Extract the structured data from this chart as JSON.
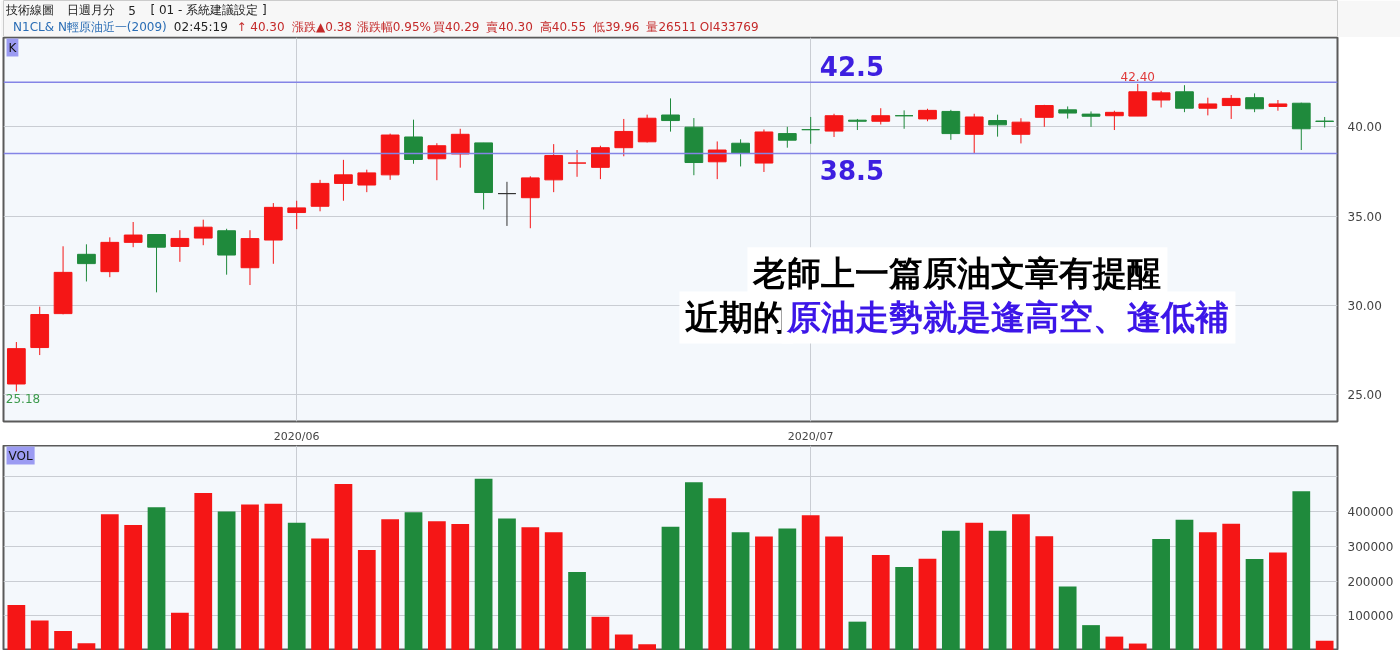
{
  "chart_data": [
    {
      "type": "other",
      "title": "技術線圖",
      "annotations": [
        "日週月分",
        "5",
        "[ 01 - 系統建議設定 ]",
        "N1CL&  N輕原油近一(2009)",
        "02:45:19",
        "↑ 40.30",
        "漲跌▲0.38",
        "漲跌幅0.95%",
        "買40.29",
        "賣40.30",
        "高40.55",
        "低39.96",
        "量26511",
        "OI433769"
      ]
    },
    {
      "type": "candlestick",
      "title": "K",
      "categories": [
        null,
        null,
        null,
        null,
        null,
        null,
        null,
        null,
        null,
        null,
        null,
        null,
        "2020/06",
        null,
        null,
        null,
        null,
        null,
        null,
        null,
        null,
        null,
        null,
        null,
        null,
        null,
        null,
        null,
        null,
        null,
        null,
        null,
        null,
        null,
        "2020/07",
        null,
        null,
        null,
        null,
        null,
        null,
        null,
        null,
        null,
        null,
        null,
        null,
        null,
        null,
        null,
        null,
        null,
        null,
        null,
        null,
        null,
        null
      ],
      "ohlc": [
        [
          25.6,
          27.95,
          25.18,
          27.58
        ],
        [
          27.64,
          29.93,
          27.22,
          29.49
        ],
        [
          29.54,
          33.31,
          29.5,
          31.85
        ],
        [
          32.86,
          33.42,
          31.34,
          32.34
        ],
        [
          31.89,
          33.81,
          31.58,
          33.53
        ],
        [
          33.53,
          34.67,
          33.26,
          33.94
        ],
        [
          33.97,
          33.97,
          30.73,
          33.26
        ],
        [
          33.3,
          34.21,
          32.44,
          33.75
        ],
        [
          33.77,
          34.8,
          33.37,
          34.38
        ],
        [
          34.18,
          34.29,
          31.72,
          32.82
        ],
        [
          32.11,
          34.21,
          31.14,
          33.74
        ],
        [
          33.66,
          35.73,
          32.33,
          35.49
        ],
        [
          35.2,
          35.86,
          34.27,
          35.46
        ],
        [
          35.55,
          37.03,
          35.27,
          36.83
        ],
        [
          36.83,
          38.15,
          35.86,
          37.31
        ],
        [
          36.74,
          37.6,
          36.34,
          37.42
        ],
        [
          37.31,
          39.62,
          37.03,
          39.54
        ],
        [
          39.43,
          40.4,
          37.93,
          38.17
        ],
        [
          38.21,
          39.08,
          37.01,
          38.94
        ],
        [
          38.48,
          39.89,
          37.71,
          39.58
        ],
        [
          39.1,
          39.1,
          35.37,
          36.32
        ],
        [
          36.26,
          36.92,
          34.45,
          36.26
        ],
        [
          36.03,
          37.23,
          34.32,
          37.14
        ],
        [
          37.03,
          39.03,
          36.34,
          38.39
        ],
        [
          37.97,
          38.7,
          37.2,
          37.97
        ],
        [
          37.73,
          38.94,
          37.07,
          38.83
        ],
        [
          38.83,
          40.44,
          38.35,
          39.74
        ],
        [
          39.16,
          40.68,
          39.12,
          40.48
        ],
        [
          40.66,
          41.59,
          39.73,
          40.35
        ],
        [
          39.98,
          40.49,
          37.29,
          38.0
        ],
        [
          38.04,
          39.18,
          37.07,
          38.7
        ],
        [
          39.08,
          39.3,
          37.78,
          38.52
        ],
        [
          37.97,
          39.85,
          37.47,
          39.71
        ],
        [
          39.62,
          40.0,
          38.83,
          39.25
        ],
        [
          39.84,
          40.55,
          39.05,
          39.84
        ],
        [
          39.76,
          40.73,
          39.43,
          40.62
        ],
        [
          40.37,
          40.44,
          39.82,
          40.31
        ],
        [
          40.31,
          41.04,
          40.13,
          40.62
        ],
        [
          40.62,
          40.92,
          39.89,
          40.62
        ],
        [
          40.44,
          41.01,
          40.31,
          40.92
        ],
        [
          40.86,
          40.95,
          39.27,
          39.62
        ],
        [
          39.58,
          40.73,
          38.53,
          40.55
        ],
        [
          40.35,
          40.68,
          39.45,
          40.11
        ],
        [
          39.58,
          40.48,
          39.07,
          40.26
        ],
        [
          40.53,
          41.23,
          40.0,
          41.19
        ],
        [
          40.95,
          41.14,
          40.46,
          40.77
        ],
        [
          40.71,
          40.86,
          40.0,
          40.59
        ],
        [
          40.62,
          40.9,
          39.82,
          40.81
        ],
        [
          40.6,
          42.4,
          40.6,
          41.96
        ],
        [
          41.5,
          42.01,
          41.08,
          41.9
        ],
        [
          41.96,
          42.33,
          40.82,
          41.04
        ],
        [
          41.04,
          41.63,
          40.64,
          41.28
        ],
        [
          41.19,
          41.78,
          40.44,
          41.59
        ],
        [
          41.63,
          41.87,
          40.82,
          41.01
        ],
        [
          41.14,
          41.5,
          40.9,
          41.28
        ],
        [
          41.32,
          41.35,
          38.7,
          39.89
        ],
        [
          40.32,
          40.55,
          39.96,
          40.3
        ]
      ],
      "colors": [
        "#f51616",
        "#f51616",
        "#f51616",
        "#1f8a3c",
        "#f51616",
        "#f51616",
        "#1f8a3c",
        "#f51616",
        "#f51616",
        "#1f8a3c",
        "#f51616",
        "#f51616",
        "#f51616",
        "#f51616",
        "#f51616",
        "#f51616",
        "#f51616",
        "#1f8a3c",
        "#f51616",
        "#f51616",
        "#1f8a3c",
        "#333333",
        "#f51616",
        "#f51616",
        "#f51616",
        "#f51616",
        "#f51616",
        "#f51616",
        "#1f8a3c",
        "#1f8a3c",
        "#f51616",
        "#1f8a3c",
        "#f51616",
        "#1f8a3c",
        "#1f8a3c",
        "#f51616",
        "#1f8a3c",
        "#f51616",
        "#1f8a3c",
        "#f51616",
        "#1f8a3c",
        "#f51616",
        "#1f8a3c",
        "#f51616",
        "#f51616",
        "#1f8a3c",
        "#1f8a3c",
        "#f51616",
        "#f51616",
        "#f51616",
        "#1f8a3c",
        "#f51616",
        "#f51616",
        "#1f8a3c",
        "#f51616",
        "#1f8a3c",
        "#1f8a3c"
      ],
      "ylim": [
        23.5,
        45
      ],
      "yticks": [
        {
          "value": 25,
          "label": "25.00"
        },
        {
          "value": 30,
          "label": "30.00"
        },
        {
          "value": 35,
          "label": "35.00"
        },
        {
          "value": 40,
          "label": "40.00"
        }
      ],
      "grid": true,
      "ref_lines": [
        {
          "axis": "y",
          "value": 42.5,
          "label": "42.5",
          "color": "#8484e6"
        },
        {
          "axis": "y",
          "value": 38.5,
          "label": "38.5",
          "color": "#8484e6"
        }
      ],
      "annotations": [
        "老師上一篇原油文章有提醒",
        "近期的",
        "原油走勢就是逢高空、逢低補",
        "25.18",
        {
          "text": "42.40",
          "y": 42.4
        }
      ]
    },
    {
      "type": "bar",
      "title": "VOL",
      "categories": [
        null,
        null,
        null,
        null,
        null,
        null,
        null,
        null,
        null,
        null,
        null,
        null,
        "2020/06",
        null,
        null,
        null,
        null,
        null,
        null,
        null,
        null,
        null,
        null,
        null,
        null,
        null,
        null,
        null,
        null,
        null,
        null,
        null,
        null,
        null,
        "2020/07",
        null,
        null,
        null,
        null,
        null,
        null,
        null,
        null,
        null,
        null,
        null,
        null,
        null,
        null,
        null,
        null,
        null,
        null,
        null,
        null,
        null,
        null
      ],
      "values": [
        131000,
        86000,
        56000,
        21000,
        392000,
        361000,
        412000,
        109000,
        453000,
        400000,
        420000,
        422000,
        368000,
        322000,
        479000,
        289000,
        378000,
        398000,
        372000,
        364000,
        494000,
        380000,
        355000,
        340000,
        226000,
        97000,
        46000,
        18000,
        356000,
        484000,
        438000,
        340000,
        328000,
        351000,
        389000,
        328000,
        83000,
        275000,
        240000,
        264000,
        345000,
        368000,
        345000,
        392000,
        329000,
        184000,
        73000,
        40000,
        20000,
        321000,
        376000,
        340000,
        365000,
        263000,
        282000,
        458000,
        28000
      ],
      "colors": [
        "#f51616",
        "#f51616",
        "#f51616",
        "#f51616",
        "#f51616",
        "#f51616",
        "#1f8a3c",
        "#f51616",
        "#f51616",
        "#1f8a3c",
        "#f51616",
        "#f51616",
        "#1f8a3c",
        "#f51616",
        "#f51616",
        "#f51616",
        "#f51616",
        "#1f8a3c",
        "#f51616",
        "#f51616",
        "#1f8a3c",
        "#1f8a3c",
        "#f51616",
        "#f51616",
        "#1f8a3c",
        "#f51616",
        "#f51616",
        "#f51616",
        "#1f8a3c",
        "#1f8a3c",
        "#f51616",
        "#1f8a3c",
        "#f51616",
        "#1f8a3c",
        "#f51616",
        "#f51616",
        "#1f8a3c",
        "#f51616",
        "#1f8a3c",
        "#f51616",
        "#1f8a3c",
        "#f51616",
        "#1f8a3c",
        "#f51616",
        "#f51616",
        "#1f8a3c",
        "#1f8a3c",
        "#f51616",
        "#f51616",
        "#1f8a3c",
        "#1f8a3c",
        "#f51616",
        "#f51616",
        "#1f8a3c",
        "#f51616",
        "#1f8a3c",
        "#f51616"
      ],
      "ylim": [
        0,
        590000
      ],
      "yticks": [
        100000,
        200000,
        300000,
        400000,
        {
          "value": 500000,
          "label": null
        }
      ],
      "grid": true,
      "tick_labels": "y"
    }
  ]
}
